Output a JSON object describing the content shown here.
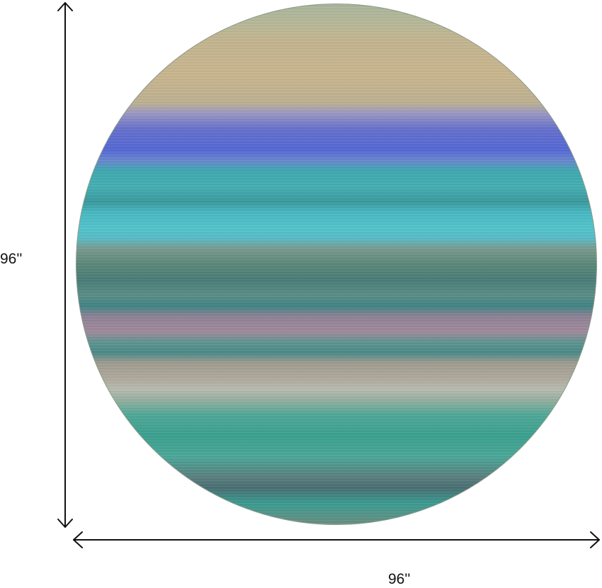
{
  "product": {
    "shape": "round",
    "colors": {
      "tan": "#c9b68e",
      "blue": "#5468d6",
      "teal": "#44b0b4",
      "cyan": "#52c4cc",
      "mauve": "#a08a9c",
      "green": "#3aa08e"
    }
  },
  "dimensions": {
    "height_label": "96''",
    "width_label": "96''"
  }
}
